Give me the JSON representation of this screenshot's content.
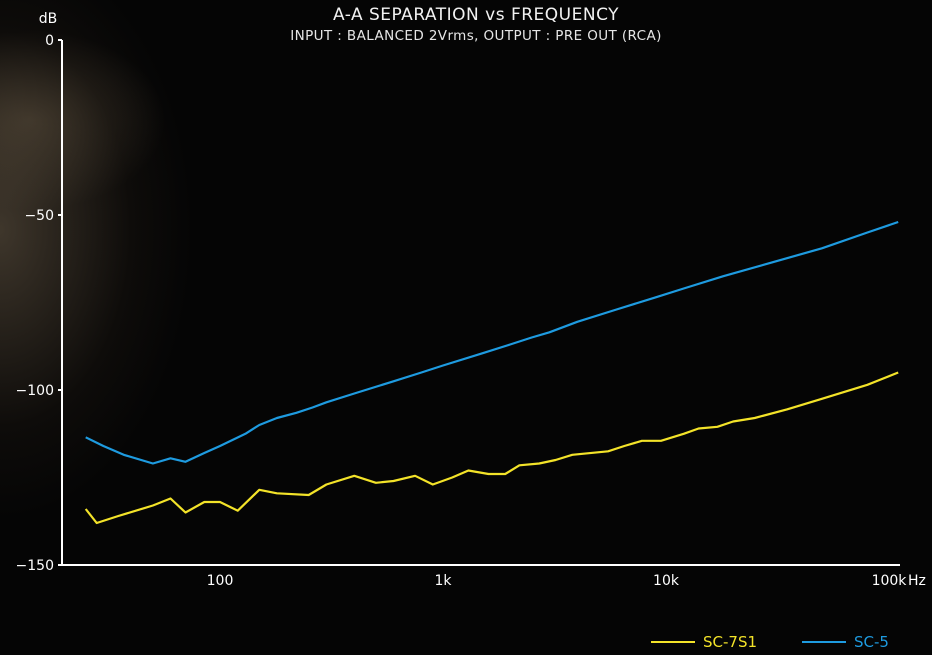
{
  "chart_data": {
    "type": "line",
    "title": "A-A SEPARATION vs FREQUENCY",
    "subtitle": "INPUT : BALANCED 2Vrms, OUTPUT : PRE OUT (RCA)",
    "ylabel": "dB",
    "xlabel": "Hz",
    "x_scale": "log",
    "xlim": [
      22,
      110000
    ],
    "ylim": [
      -150,
      0
    ],
    "yticks": [
      {
        "value": 0,
        "label": "0"
      },
      {
        "value": -50,
        "label": "−50"
      },
      {
        "value": -100,
        "label": "−100"
      },
      {
        "value": -150,
        "label": "−150"
      }
    ],
    "xticks": [
      {
        "value": 100,
        "label": "100"
      },
      {
        "value": 1000,
        "label": "1k"
      },
      {
        "value": 10000,
        "label": "10k"
      },
      {
        "value": 100000,
        "label": "100k"
      }
    ],
    "legend_position": "bottom-right",
    "series": [
      {
        "name": "SC-7S1",
        "color": "#f3e329",
        "points": [
          [
            25,
            -134
          ],
          [
            28,
            -138
          ],
          [
            35,
            -136
          ],
          [
            50,
            -133
          ],
          [
            60,
            -131
          ],
          [
            70,
            -135
          ],
          [
            85,
            -132
          ],
          [
            100,
            -132
          ],
          [
            120,
            -134.5
          ],
          [
            150,
            -128.5
          ],
          [
            180,
            -129.5
          ],
          [
            250,
            -130
          ],
          [
            300,
            -127
          ],
          [
            400,
            -124.5
          ],
          [
            500,
            -126.5
          ],
          [
            600,
            -126
          ],
          [
            750,
            -124.5
          ],
          [
            900,
            -127
          ],
          [
            1100,
            -125
          ],
          [
            1300,
            -123
          ],
          [
            1600,
            -124
          ],
          [
            1900,
            -124
          ],
          [
            2200,
            -121.5
          ],
          [
            2700,
            -121
          ],
          [
            3200,
            -120
          ],
          [
            3800,
            -118.5
          ],
          [
            5500,
            -117.5
          ],
          [
            6500,
            -116
          ],
          [
            7800,
            -114.5
          ],
          [
            9500,
            -114.5
          ],
          [
            12000,
            -112.5
          ],
          [
            14000,
            -111
          ],
          [
            17000,
            -110.5
          ],
          [
            20000,
            -109
          ],
          [
            25000,
            -108
          ],
          [
            35000,
            -105.5
          ],
          [
            50000,
            -102.5
          ],
          [
            80000,
            -98.5
          ],
          [
            110000,
            -95
          ]
        ]
      },
      {
        "name": "SC-5",
        "color": "#1e9be0",
        "points": [
          [
            25,
            -113.5
          ],
          [
            30,
            -116
          ],
          [
            37,
            -118.5
          ],
          [
            50,
            -121
          ],
          [
            60,
            -119.5
          ],
          [
            70,
            -120.5
          ],
          [
            85,
            -118
          ],
          [
            100,
            -116
          ],
          [
            130,
            -112.5
          ],
          [
            150,
            -110
          ],
          [
            180,
            -108
          ],
          [
            220,
            -106.5
          ],
          [
            260,
            -105
          ],
          [
            300,
            -103.5
          ],
          [
            400,
            -101
          ],
          [
            600,
            -97.5
          ],
          [
            800,
            -95
          ],
          [
            1000,
            -93
          ],
          [
            1500,
            -89.5
          ],
          [
            2000,
            -87
          ],
          [
            2500,
            -85
          ],
          [
            3000,
            -83.5
          ],
          [
            4000,
            -80.5
          ],
          [
            6000,
            -77
          ],
          [
            9000,
            -73.5
          ],
          [
            12000,
            -71
          ],
          [
            18000,
            -67.5
          ],
          [
            30000,
            -63.5
          ],
          [
            50000,
            -59.5
          ],
          [
            80000,
            -55
          ],
          [
            110000,
            -52
          ]
        ]
      }
    ]
  }
}
